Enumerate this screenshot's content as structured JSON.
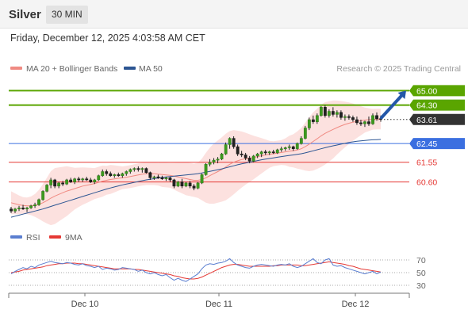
{
  "header": {
    "asset": "Silver",
    "timeframe": "30 MIN"
  },
  "datetime": "Friday, December 12, 2025 4:03:58 AM CET",
  "legend": {
    "ma20": {
      "label": "MA 20 + Bollinger Bands",
      "color": "#f08a82"
    },
    "ma50": {
      "label": "MA 50",
      "color": "#2c5592"
    }
  },
  "credit": "Research © 2025 Trading Central",
  "rsi_legend": {
    "rsi": {
      "label": "RSI",
      "color": "#5a7ed0"
    },
    "ma9": {
      "label": "9MA",
      "color": "#e53935"
    }
  },
  "levels": [
    {
      "label": "65.00",
      "value": 65.0,
      "kind": "resistance",
      "color": "#5aa500"
    },
    {
      "label": "64.30",
      "value": 64.3,
      "kind": "resistance",
      "color": "#5aa500"
    },
    {
      "label": "63.61",
      "value": 63.61,
      "kind": "last",
      "color": "#333333"
    },
    {
      "label": "62.45",
      "value": 62.45,
      "kind": "pivot",
      "color": "#3b6fe0"
    },
    {
      "label": "61.55",
      "value": 61.55,
      "kind": "support",
      "color": "#e53935"
    },
    {
      "label": "60.60",
      "value": 60.6,
      "kind": "support",
      "color": "#e53935"
    }
  ],
  "chart_data": [
    {
      "type": "candlestick",
      "title": "Silver",
      "timeframe": "30 MIN",
      "x_labels": [
        "Dec 10",
        "Dec 11",
        "Dec 12"
      ],
      "ohlc": [
        [
          59.3,
          59.4,
          59.1,
          59.2
        ],
        [
          59.2,
          59.35,
          59.1,
          59.3
        ],
        [
          59.3,
          59.45,
          59.2,
          59.35
        ],
        [
          59.35,
          59.5,
          59.25,
          59.3
        ],
        [
          59.3,
          59.4,
          59.15,
          59.35
        ],
        [
          59.35,
          59.5,
          59.3,
          59.45
        ],
        [
          59.45,
          59.6,
          59.35,
          59.5
        ],
        [
          59.5,
          59.8,
          59.45,
          59.75
        ],
        [
          59.75,
          60.2,
          59.7,
          60.15
        ],
        [
          60.15,
          60.5,
          60.1,
          60.45
        ],
        [
          60.45,
          60.8,
          60.3,
          60.7
        ],
        [
          60.7,
          60.75,
          60.3,
          60.4
        ],
        [
          60.4,
          60.6,
          60.3,
          60.55
        ],
        [
          60.55,
          60.65,
          60.4,
          60.5
        ],
        [
          60.5,
          60.75,
          60.45,
          60.7
        ],
        [
          60.7,
          60.8,
          60.55,
          60.6
        ],
        [
          60.6,
          60.8,
          60.5,
          60.75
        ],
        [
          60.75,
          60.85,
          60.6,
          60.7
        ],
        [
          60.7,
          60.8,
          60.6,
          60.75
        ],
        [
          60.75,
          60.85,
          60.65,
          60.7
        ],
        [
          60.7,
          60.8,
          60.55,
          60.6
        ],
        [
          60.6,
          60.75,
          60.5,
          60.7
        ],
        [
          60.7,
          60.95,
          60.65,
          60.9
        ],
        [
          60.9,
          61.2,
          60.85,
          61.1
        ],
        [
          61.1,
          61.2,
          60.9,
          61.0
        ],
        [
          61.0,
          61.1,
          60.85,
          60.9
        ],
        [
          60.9,
          61.0,
          60.8,
          60.95
        ],
        [
          60.95,
          61.05,
          60.85,
          60.9
        ],
        [
          60.9,
          61.05,
          60.8,
          61.0
        ],
        [
          61.0,
          61.15,
          60.9,
          61.1
        ],
        [
          61.1,
          61.25,
          61.0,
          61.2
        ],
        [
          61.2,
          61.3,
          61.1,
          61.25
        ],
        [
          61.25,
          61.35,
          61.1,
          61.2
        ],
        [
          61.2,
          61.3,
          61.05,
          61.25
        ],
        [
          61.25,
          61.3,
          61.0,
          61.05
        ],
        [
          61.05,
          61.1,
          60.7,
          60.8
        ],
        [
          60.8,
          60.9,
          60.7,
          60.85
        ],
        [
          60.85,
          60.95,
          60.75,
          60.8
        ],
        [
          60.8,
          60.9,
          60.7,
          60.75
        ],
        [
          60.75,
          60.85,
          60.65,
          60.8
        ],
        [
          60.8,
          60.85,
          60.6,
          60.7
        ],
        [
          60.7,
          60.75,
          60.3,
          60.4
        ],
        [
          60.4,
          60.65,
          60.35,
          60.6
        ],
        [
          60.6,
          60.75,
          60.3,
          60.4
        ],
        [
          60.4,
          60.6,
          60.35,
          60.55
        ],
        [
          60.55,
          60.65,
          60.3,
          60.4
        ],
        [
          60.4,
          60.5,
          60.2,
          60.3
        ],
        [
          60.3,
          60.6,
          60.25,
          60.55
        ],
        [
          60.55,
          61.0,
          60.5,
          60.95
        ],
        [
          60.95,
          61.5,
          60.9,
          61.45
        ],
        [
          61.45,
          61.7,
          61.35,
          61.55
        ],
        [
          61.55,
          61.75,
          61.45,
          61.65
        ],
        [
          61.65,
          61.8,
          61.5,
          61.7
        ],
        [
          61.7,
          62.0,
          61.65,
          61.95
        ],
        [
          61.95,
          62.5,
          61.9,
          62.4
        ],
        [
          62.4,
          62.75,
          62.2,
          62.7
        ],
        [
          62.7,
          62.8,
          62.2,
          62.3
        ],
        [
          62.3,
          62.4,
          61.85,
          61.95
        ],
        [
          61.95,
          62.1,
          61.8,
          61.9
        ],
        [
          61.9,
          62.0,
          61.65,
          61.75
        ],
        [
          61.75,
          61.85,
          61.5,
          61.6
        ],
        [
          61.6,
          61.9,
          61.55,
          61.85
        ],
        [
          61.85,
          62.0,
          61.75,
          61.95
        ],
        [
          61.95,
          62.1,
          61.8,
          62.05
        ],
        [
          62.05,
          62.15,
          61.9,
          62.0
        ],
        [
          62.0,
          62.1,
          61.9,
          62.05
        ],
        [
          62.05,
          62.15,
          61.95,
          62.0
        ],
        [
          62.0,
          62.2,
          61.95,
          62.15
        ],
        [
          62.15,
          62.3,
          62.05,
          62.2
        ],
        [
          62.2,
          62.3,
          62.1,
          62.25
        ],
        [
          62.25,
          62.4,
          62.15,
          62.3
        ],
        [
          62.3,
          62.35,
          62.1,
          62.2
        ],
        [
          62.2,
          62.5,
          62.15,
          62.45
        ],
        [
          62.45,
          62.8,
          62.4,
          62.7
        ],
        [
          62.7,
          63.3,
          62.65,
          63.2
        ],
        [
          63.2,
          63.7,
          63.1,
          63.6
        ],
        [
          63.6,
          63.8,
          63.4,
          63.5
        ],
        [
          63.5,
          63.9,
          63.4,
          63.8
        ],
        [
          63.8,
          64.25,
          63.75,
          64.2
        ],
        [
          64.2,
          64.3,
          63.7,
          63.8
        ],
        [
          63.8,
          64.1,
          63.7,
          64.0
        ],
        [
          64.0,
          64.2,
          63.75,
          63.85
        ],
        [
          63.85,
          64.05,
          63.7,
          63.95
        ],
        [
          63.95,
          64.05,
          63.6,
          63.7
        ],
        [
          63.7,
          63.85,
          63.55,
          63.75
        ],
        [
          63.75,
          63.85,
          63.6,
          63.7
        ],
        [
          63.7,
          63.8,
          63.5,
          63.6
        ],
        [
          63.6,
          63.75,
          63.35,
          63.45
        ],
        [
          63.45,
          63.6,
          63.3,
          63.4
        ],
        [
          63.4,
          63.55,
          63.25,
          63.5
        ],
        [
          63.5,
          63.75,
          63.3,
          63.4
        ],
        [
          63.4,
          63.9,
          63.35,
          63.8
        ],
        [
          63.8,
          63.95,
          63.55,
          63.65
        ],
        [
          63.65,
          63.8,
          63.5,
          63.61
        ]
      ],
      "ma20": [
        59.6,
        59.55,
        59.5,
        59.47,
        59.45,
        59.45,
        59.47,
        59.52,
        59.6,
        59.7,
        59.82,
        59.92,
        60.0,
        60.08,
        60.16,
        60.22,
        60.28,
        60.34,
        60.4,
        60.44,
        60.48,
        60.52,
        60.58,
        60.64,
        60.68,
        60.72,
        60.75,
        60.78,
        60.8,
        60.83,
        60.86,
        60.9,
        60.94,
        60.98,
        61.0,
        61.0,
        61.0,
        60.98,
        60.96,
        60.94,
        60.92,
        60.88,
        60.84,
        60.8,
        60.76,
        60.72,
        60.68,
        60.68,
        60.72,
        60.8,
        60.9,
        61.0,
        61.1,
        61.2,
        61.32,
        61.45,
        61.55,
        61.62,
        61.68,
        61.72,
        61.75,
        61.78,
        61.82,
        61.86,
        61.9,
        61.93,
        61.96,
        61.99,
        62.02,
        62.05,
        62.08,
        62.1,
        62.14,
        62.2,
        62.3,
        62.42,
        62.55,
        62.68,
        62.82,
        62.94,
        63.04,
        63.13,
        63.22,
        63.3,
        63.37,
        63.43,
        63.48,
        63.52,
        63.55,
        63.58,
        63.6,
        63.62,
        63.63,
        63.63
      ],
      "ma50": [
        58.9,
        58.95,
        59.0,
        59.05,
        59.1,
        59.15,
        59.2,
        59.25,
        59.3,
        59.36,
        59.42,
        59.48,
        59.54,
        59.6,
        59.66,
        59.72,
        59.78,
        59.84,
        59.9,
        59.96,
        60.02,
        60.08,
        60.14,
        60.2,
        60.26,
        60.31,
        60.36,
        60.41,
        60.46,
        60.5,
        60.54,
        60.58,
        60.62,
        60.66,
        60.7,
        60.73,
        60.76,
        60.79,
        60.82,
        60.84,
        60.86,
        60.88,
        60.9,
        60.92,
        60.94,
        60.96,
        60.98,
        61.0,
        61.03,
        61.07,
        61.11,
        61.15,
        61.19,
        61.23,
        61.28,
        61.33,
        61.38,
        61.43,
        61.47,
        61.51,
        61.55,
        61.59,
        61.63,
        61.67,
        61.7,
        61.73,
        61.76,
        61.79,
        61.82,
        61.85,
        61.88,
        61.9,
        61.93,
        61.96,
        62.0,
        62.05,
        62.1,
        62.15,
        62.2,
        62.25,
        62.3,
        62.34,
        62.38,
        62.42,
        62.46,
        62.5,
        62.53,
        62.56,
        62.58,
        62.6,
        62.62,
        62.63,
        62.64,
        62.65
      ],
      "bb_width": [
        0.55,
        0.5,
        0.45,
        0.4,
        0.4,
        0.45,
        0.55,
        0.7,
        0.9,
        1.1,
        1.3,
        1.35,
        1.3,
        1.25,
        1.2,
        1.1,
        1.0,
        0.95,
        0.9,
        0.85,
        0.8,
        0.75,
        0.75,
        0.75,
        0.7,
        0.7,
        0.65,
        0.6,
        0.55,
        0.55,
        0.55,
        0.55,
        0.55,
        0.55,
        0.55,
        0.55,
        0.55,
        0.55,
        0.6,
        0.6,
        0.6,
        0.65,
        0.7,
        0.75,
        0.8,
        0.8,
        0.8,
        0.85,
        1.0,
        1.2,
        1.35,
        1.45,
        1.5,
        1.55,
        1.6,
        1.6,
        1.55,
        1.45,
        1.35,
        1.25,
        1.15,
        1.05,
        0.95,
        0.85,
        0.75,
        0.65,
        0.6,
        0.6,
        0.6,
        0.65,
        0.75,
        0.8,
        0.9,
        1.0,
        1.15,
        1.3,
        1.4,
        1.45,
        1.5,
        1.5,
        1.45,
        1.4,
        1.3,
        1.2,
        1.1,
        1.0,
        0.9,
        0.8,
        0.7,
        0.6,
        0.55,
        0.5,
        0.5,
        0.5
      ],
      "projection": {
        "from": 63.7,
        "to": 65.0
      },
      "ylim": [
        58.6,
        65.7
      ]
    },
    {
      "type": "line",
      "title": "RSI",
      "yticks": [
        30,
        50,
        70
      ],
      "ylim": [
        20,
        90
      ],
      "rsi": [
        48,
        52,
        55,
        58,
        56,
        60,
        58,
        62,
        64,
        66,
        68,
        66,
        65,
        64,
        66,
        65,
        63,
        62,
        64,
        61,
        60,
        58,
        60,
        55,
        57,
        56,
        54,
        55,
        58,
        57,
        56,
        55,
        52,
        54,
        50,
        48,
        50,
        47,
        45,
        47,
        42,
        38,
        41,
        38,
        36,
        40,
        44,
        48,
        56,
        62,
        64,
        63,
        65,
        66,
        68,
        72,
        66,
        62,
        60,
        58,
        57,
        60,
        62,
        63,
        62,
        61,
        60,
        62,
        63,
        62,
        64,
        60,
        58,
        60,
        64,
        68,
        72,
        66,
        64,
        70,
        72,
        62,
        60,
        61,
        58,
        56,
        54,
        52,
        50,
        48,
        50,
        52,
        48,
        51
      ],
      "ma9": [
        50,
        51,
        52,
        54,
        55,
        56,
        57,
        58,
        59,
        61,
        62,
        63,
        64,
        64,
        65,
        65,
        65,
        64,
        64,
        63,
        62,
        61,
        60,
        59,
        58,
        57,
        56,
        56,
        56,
        56,
        56,
        55,
        55,
        54,
        53,
        52,
        51,
        50,
        49,
        48,
        47,
        45,
        44,
        42,
        41,
        40,
        40,
        41,
        43,
        46,
        49,
        52,
        55,
        58,
        60,
        62,
        63,
        63,
        62,
        61,
        60,
        60,
        60,
        60,
        60,
        60,
        61,
        61,
        62,
        62,
        62,
        62,
        62,
        61,
        61,
        62,
        63,
        64,
        65,
        66,
        67,
        66,
        65,
        64,
        63,
        61,
        60,
        58,
        56,
        55,
        54,
        53,
        52,
        51
      ]
    }
  ]
}
